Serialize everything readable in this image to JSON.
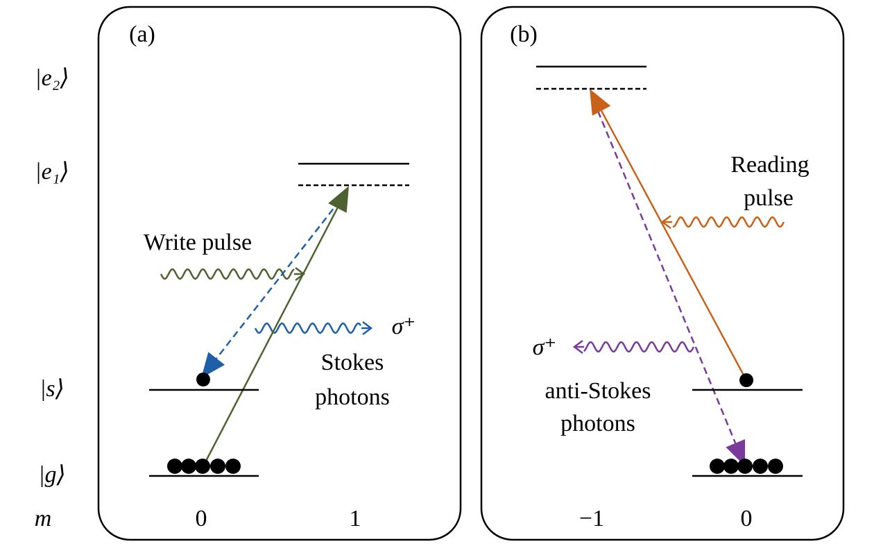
{
  "level_labels": [
    "|e₂⟩",
    "|e₁⟩",
    "|s⟩",
    "|g⟩"
  ],
  "m_label": "m",
  "panel_a": {
    "label": "(a)",
    "pump": "Write pulse",
    "polarization": "σ⁺",
    "emission": [
      "Stokes",
      "photons"
    ],
    "m_values": [
      "0",
      "1"
    ]
  },
  "panel_b": {
    "label": "(b)",
    "pump": [
      "Reading",
      "pulse"
    ],
    "polarization": "σ⁺",
    "emission": [
      "anti-Stokes",
      "photons"
    ],
    "m_values": [
      "−1",
      "0"
    ]
  }
}
